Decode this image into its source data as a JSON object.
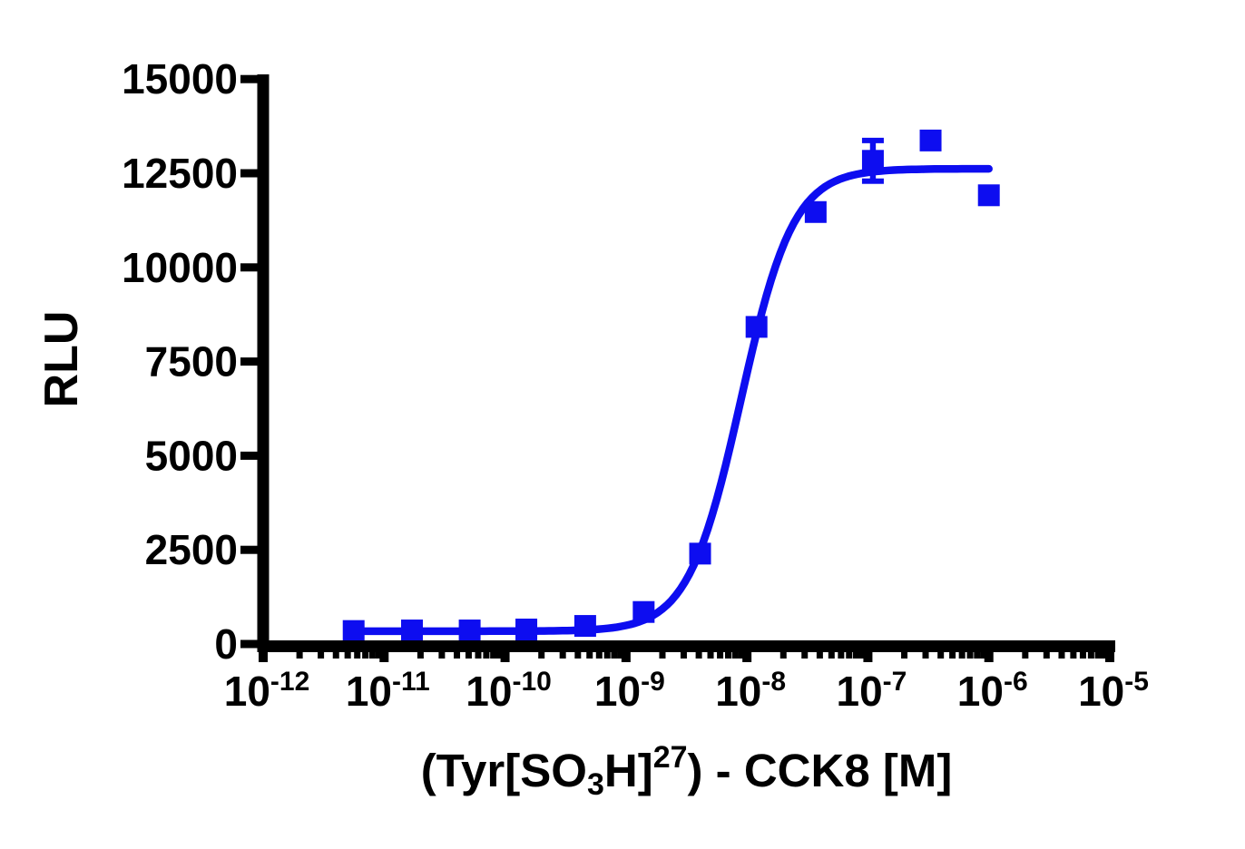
{
  "chart_data": {
    "type": "scatter",
    "subtype": "dose-response-curve",
    "title": "",
    "ylabel": "RLU",
    "xlabel": "(Tyr[SO3H]27) - CCK8 [M]",
    "xlabel_parts": {
      "pre": "(Tyr[SO",
      "sub": "3",
      "mid": "H]",
      "sup": "27",
      "post": ") - CCK8 [M]"
    },
    "x_scale": "log10",
    "x_tick_base": "10",
    "x_ticks_exponents": [
      -12,
      -11,
      -10,
      -9,
      -8,
      -7,
      -6,
      -5
    ],
    "xlim_exponents": [
      -12,
      -5
    ],
    "y_ticks": [
      0,
      2500,
      5000,
      7500,
      10000,
      12500,
      15000
    ],
    "ylim": [
      0,
      15000
    ],
    "grid": false,
    "legend": "none",
    "background": "#ffffff",
    "axis_color": "#000000",
    "series": [
      {
        "name": "(Tyr[SO3H]27)-CCK8",
        "marker": "square",
        "color": "#0d0df0",
        "points": [
          {
            "conc_M": 5.6e-12,
            "rlu": 345
          },
          {
            "conc_M": 1.7e-11,
            "rlu": 360
          },
          {
            "conc_M": 5.1e-11,
            "rlu": 360
          },
          {
            "conc_M": 1.5e-10,
            "rlu": 385
          },
          {
            "conc_M": 4.6e-10,
            "rlu": 480
          },
          {
            "conc_M": 1.4e-09,
            "rlu": 850
          },
          {
            "conc_M": 4.1e-09,
            "rlu": 2400
          },
          {
            "conc_M": 1.2e-08,
            "rlu": 8420
          },
          {
            "conc_M": 3.7e-08,
            "rlu": 11470
          },
          {
            "conc_M": 1.1e-07,
            "rlu": 12830,
            "err": 540
          },
          {
            "conc_M": 3.3e-07,
            "rlu": 13370
          },
          {
            "conc_M": 1e-06,
            "rlu": 11915
          }
        ]
      }
    ],
    "fit_curve": {
      "model": "4PL-sigmoidal",
      "bottom": 340,
      "top": 12620,
      "log_ec50": -8.05,
      "hill": 2.0,
      "x_range_log": [
        -11.25,
        -6.0
      ]
    }
  }
}
